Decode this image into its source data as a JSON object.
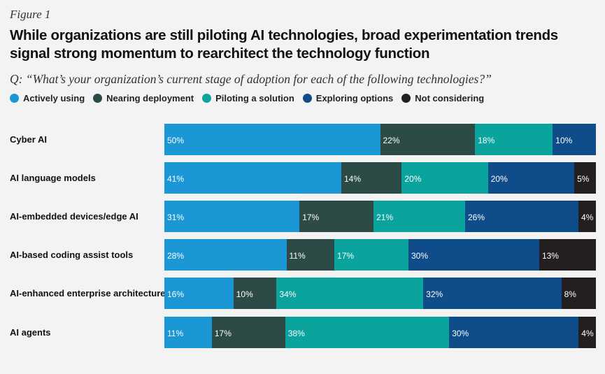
{
  "figure_label": "Figure 1",
  "title": "While organizations are still piloting AI technologies, broad experimentation trends signal strong momentum to rearchitect the technology function",
  "question": "Q: “What’s your organization’s current stage of adoption for each of the following technologies?”",
  "colors": {
    "actively_using": "#1b97d6",
    "nearing_deployment": "#2c4b46",
    "piloting": "#0aa39d",
    "exploring": "#0f4c8a",
    "not_considering": "#231f20"
  },
  "chart_data": {
    "type": "bar",
    "orientation": "horizontal",
    "stacked": true,
    "title": "While organizations are still piloting AI technologies, broad experimentation trends signal strong momentum to rearchitect the technology function",
    "xlabel": "",
    "ylabel": "",
    "xlim": [
      0,
      100
    ],
    "legend_position": "top-left",
    "categories": [
      "Cyber AI",
      "AI language models",
      "AI-embedded devices/edge AI",
      "AI-based coding assist tools",
      "AI-enhanced enterprise architecture",
      "AI agents"
    ],
    "series": [
      {
        "name": "Actively using",
        "color": "#1b97d6",
        "values": [
          50,
          41,
          31,
          28,
          16,
          11
        ]
      },
      {
        "name": "Nearing deployment",
        "color": "#2c4b46",
        "values": [
          22,
          14,
          17,
          11,
          10,
          17
        ]
      },
      {
        "name": "Piloting a solution",
        "color": "#0aa39d",
        "values": [
          18,
          20,
          21,
          17,
          34,
          38
        ]
      },
      {
        "name": "Exploring options",
        "color": "#0f4c8a",
        "values": [
          10,
          20,
          26,
          30,
          32,
          30
        ]
      },
      {
        "name": "Not considering",
        "color": "#231f20",
        "values": [
          0,
          5,
          4,
          13,
          8,
          4
        ]
      }
    ]
  }
}
